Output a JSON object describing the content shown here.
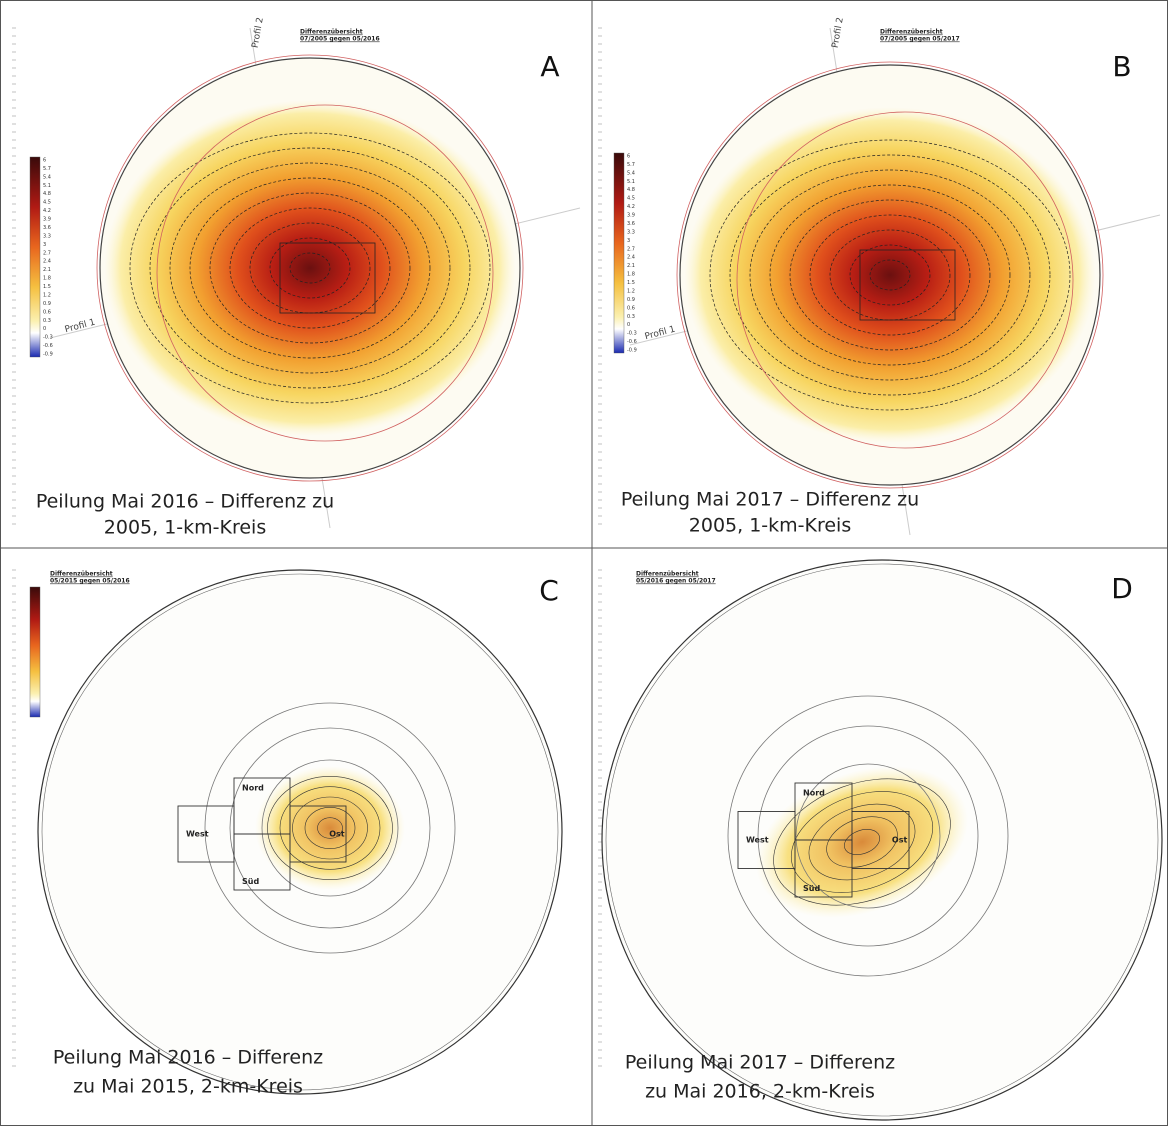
{
  "panels": [
    {
      "letter": "A",
      "title": [
        "Differenzübersicht",
        "07/2005 gegen 05/2016"
      ],
      "caption": [
        "Peilung Mai 2016 – Differenz zu",
        "2005, 1-km-Kreis"
      ],
      "profiles": [
        "Profil 1",
        "Profil 2"
      ]
    },
    {
      "letter": "B",
      "title": [
        "Differenzübersicht",
        "07/2005 gegen 05/2017"
      ],
      "caption": [
        "Peilung Mai 2017 – Differenz zu",
        "2005, 1-km-Kreis"
      ],
      "profiles": [
        "Profil 1",
        "Profil 2"
      ]
    },
    {
      "letter": "C",
      "title": [
        "Differenzübersicht",
        "05/2015 gegen 05/2016"
      ],
      "caption": [
        "Peilung Mai 2016 – Differenz",
        "zu Mai 2015, 2-km-Kreis"
      ],
      "boxes": [
        "Nord",
        "West",
        "Süd",
        "Ost"
      ]
    },
    {
      "letter": "D",
      "title": [
        "Differenzübersicht",
        "05/2016 gegen 05/2017"
      ],
      "caption": [
        "Peilung Mai 2017 – Differenz",
        "zu Mai 2016, 2-km-Kreis"
      ],
      "boxes": [
        "Nord",
        "West",
        "Süd",
        "Ost"
      ]
    }
  ],
  "colorbar_ticks": [
    6,
    5.7,
    5.4,
    5.1,
    4.8,
    4.5,
    4.2,
    3.9,
    3.6,
    3.3,
    3,
    2.7,
    2.4,
    2.1,
    1.8,
    1.5,
    1.2,
    0.9,
    0.6,
    0.3,
    0,
    -0.3,
    -0.6,
    -0.9
  ]
}
